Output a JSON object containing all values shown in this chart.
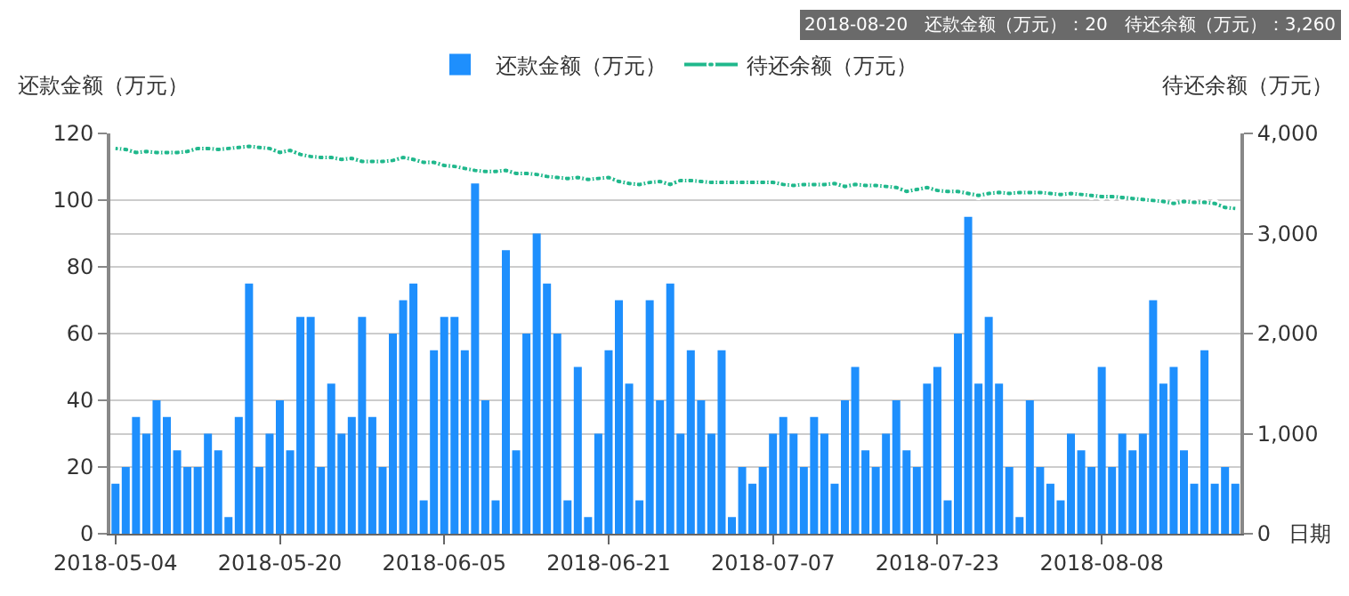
{
  "chart_data": {
    "type": "bar",
    "categories": [
      "2018-05-04",
      null,
      null,
      null,
      null,
      null,
      null,
      null,
      null,
      null,
      null,
      null,
      null,
      null,
      null,
      null,
      "2018-05-20",
      null,
      null,
      null,
      null,
      null,
      null,
      null,
      null,
      null,
      null,
      null,
      null,
      null,
      null,
      null,
      "2018-06-05",
      null,
      null,
      null,
      null,
      null,
      null,
      null,
      null,
      null,
      null,
      null,
      null,
      null,
      null,
      null,
      "2018-06-21",
      null,
      null,
      null,
      null,
      null,
      null,
      null,
      null,
      null,
      null,
      null,
      null,
      null,
      null,
      null,
      "2018-07-07",
      null,
      null,
      null,
      null,
      null,
      null,
      null,
      null,
      null,
      null,
      null,
      null,
      null,
      null,
      null,
      "2018-07-23",
      null,
      null,
      null,
      null,
      null,
      null,
      null,
      null,
      null,
      null,
      null,
      null,
      null,
      null,
      null,
      "2018-08-08",
      null,
      null,
      null,
      null,
      null,
      null,
      null,
      null,
      null,
      null,
      null,
      null,
      null
    ],
    "series": [
      {
        "name": "还款金额（万元）",
        "color": "#1e8ffd",
        "values": [
          15,
          20,
          35,
          30,
          40,
          35,
          25,
          20,
          20,
          30,
          25,
          5,
          35,
          75,
          20,
          30,
          40,
          25,
          65,
          65,
          20,
          45,
          30,
          35,
          65,
          35,
          20,
          60,
          70,
          75,
          10,
          55,
          65,
          65,
          55,
          105,
          40,
          10,
          85,
          25,
          60,
          90,
          75,
          60,
          10,
          50,
          5,
          30,
          55,
          70,
          45,
          10,
          70,
          40,
          75,
          30,
          55,
          40,
          30,
          55,
          5,
          20,
          15,
          20,
          30,
          35,
          30,
          20,
          35,
          30,
          15,
          40,
          50,
          25,
          20,
          30,
          40,
          25,
          20,
          45,
          50,
          10,
          60,
          95,
          45,
          65,
          45,
          20,
          5,
          40,
          20,
          15,
          10,
          30,
          25,
          20,
          50,
          20,
          30,
          25,
          30,
          70,
          45,
          50,
          25,
          15,
          55,
          15,
          20,
          15
        ]
      },
      {
        "name": "待还余额（万元）",
        "type": "line",
        "axis": "y2",
        "color": "#20b88c",
        "marker": "circle",
        "values": [
          3850,
          3840,
          3810,
          3820,
          3810,
          3810,
          3810,
          3820,
          3850,
          3850,
          3840,
          3850,
          3860,
          3870,
          3860,
          3850,
          3810,
          3830,
          3790,
          3770,
          3760,
          3760,
          3740,
          3750,
          3720,
          3720,
          3720,
          3730,
          3760,
          3740,
          3710,
          3710,
          3680,
          3670,
          3650,
          3630,
          3620,
          3620,
          3630,
          3600,
          3600,
          3590,
          3570,
          3560,
          3550,
          3560,
          3540,
          3550,
          3560,
          3520,
          3500,
          3490,
          3510,
          3520,
          3490,
          3530,
          3530,
          3520,
          3510,
          3510,
          3510,
          3510,
          3510,
          3510,
          3510,
          3490,
          3480,
          3490,
          3490,
          3490,
          3500,
          3470,
          3490,
          3480,
          3480,
          3470,
          3460,
          3420,
          3440,
          3460,
          3430,
          3420,
          3420,
          3400,
          3380,
          3400,
          3410,
          3400,
          3410,
          3410,
          3410,
          3400,
          3390,
          3400,
          3390,
          3380,
          3370,
          3370,
          3360,
          3350,
          3340,
          3330,
          3320,
          3300,
          3320,
          3310,
          3310,
          3300,
          3260,
          3250
        ]
      }
    ],
    "ylabel": "还款金额（万元）",
    "y2label": "待还余额（万元）",
    "xlabel": "日期",
    "ylim": [
      0,
      120
    ],
    "yticks": [
      0,
      20,
      40,
      60,
      80,
      100,
      120
    ],
    "y2lim": [
      0,
      4000
    ],
    "y2ticks": [
      0,
      {
        "value": 1000,
        "label": "1,000"
      },
      {
        "value": 2000,
        "label": "2,000"
      },
      {
        "value": 3000,
        "label": "3,000"
      },
      {
        "value": 4000,
        "label": "4,000"
      }
    ],
    "grid": "y",
    "legend": "top",
    "annotations": [
      "2018-08-20",
      "还款金额（万元）：20",
      "待还余额（万元）：3,260"
    ]
  }
}
